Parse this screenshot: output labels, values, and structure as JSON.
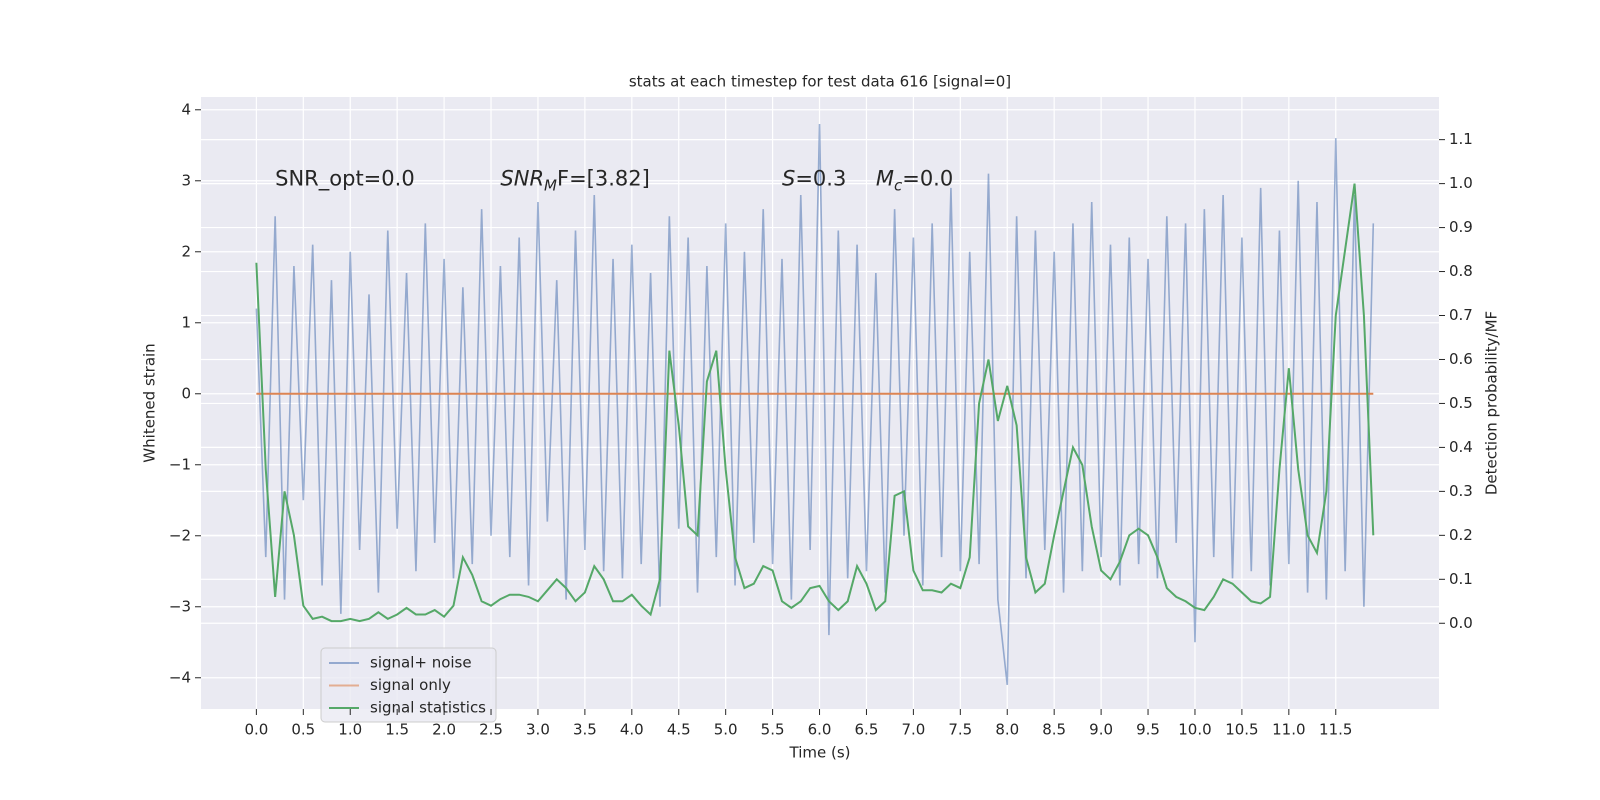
{
  "chart_data": {
    "type": "line",
    "title": "stats at each timestep for test data 616 [signal=0]",
    "xlabel": "Time (s)",
    "ylabel": "Whitened strain",
    "y2label": "Detection probability/MF",
    "annotations": [
      {
        "base": "SNR_opt=0.0"
      },
      {
        "base": "SNR",
        "sub": "M",
        "rest": "F=[3.82]"
      },
      {
        "base": "S",
        "rest": "=0.3"
      },
      {
        "base": "M",
        "sub": "c",
        "rest": "=0.0"
      }
    ],
    "x": [
      0.0,
      0.1,
      0.2,
      0.3,
      0.4,
      0.5,
      0.6,
      0.7,
      0.8,
      0.9,
      1.0,
      1.1,
      1.2,
      1.3,
      1.4,
      1.5,
      1.6,
      1.7,
      1.8,
      1.9,
      2.0,
      2.1,
      2.2,
      2.3,
      2.4,
      2.5,
      2.6,
      2.7,
      2.8,
      2.9,
      3.0,
      3.1,
      3.2,
      3.3,
      3.4,
      3.5,
      3.6,
      3.7,
      3.8,
      3.9,
      4.0,
      4.1,
      4.2,
      4.3,
      4.4,
      4.5,
      4.6,
      4.7,
      4.8,
      4.9,
      5.0,
      5.1,
      5.2,
      5.3,
      5.4,
      5.5,
      5.6,
      5.7,
      5.8,
      5.9,
      6.0,
      6.1,
      6.2,
      6.3,
      6.4,
      6.5,
      6.6,
      6.7,
      6.8,
      6.9,
      7.0,
      7.1,
      7.2,
      7.3,
      7.4,
      7.5,
      7.6,
      7.7,
      7.8,
      7.9,
      8.0,
      8.1,
      8.2,
      8.3,
      8.4,
      8.5,
      8.6,
      8.7,
      8.8,
      8.9,
      9.0,
      9.1,
      9.2,
      9.3,
      9.4,
      9.5,
      9.6,
      9.7,
      9.8,
      9.9,
      10.0,
      10.1,
      10.2,
      10.3,
      10.4,
      10.5,
      10.6,
      10.7,
      10.8,
      10.9,
      11.0,
      11.1,
      11.2,
      11.3,
      11.4,
      11.5,
      11.6,
      11.7,
      11.8,
      11.9
    ],
    "series": [
      {
        "name": "signal+ noise",
        "color": "#4c72b0",
        "values": [
          1.2,
          -2.3,
          2.5,
          -2.9,
          1.8,
          -1.5,
          2.1,
          -2.7,
          1.6,
          -3.1,
          2.0,
          -2.2,
          1.4,
          -2.8,
          2.3,
          -1.9,
          1.7,
          -2.5,
          2.4,
          -2.1,
          1.9,
          -2.6,
          1.5,
          -2.4,
          2.6,
          -2.0,
          1.8,
          -2.3,
          2.2,
          -2.7,
          2.7,
          -1.8,
          1.6,
          -2.9,
          2.3,
          -2.2,
          2.8,
          -2.5,
          1.9,
          -2.6,
          2.1,
          -2.4,
          1.7,
          -3.0,
          2.5,
          -1.9,
          2.2,
          -2.8,
          1.8,
          -2.3,
          2.4,
          -2.7,
          2.0,
          -2.1,
          2.6,
          -2.4,
          1.9,
          -2.9,
          2.8,
          -2.2,
          3.8,
          -3.4,
          2.3,
          -2.6,
          2.1,
          -2.5,
          1.7,
          -2.8,
          2.6,
          -2.0,
          2.2,
          -2.7,
          2.4,
          -2.3,
          2.9,
          -2.5,
          2.0,
          -2.4,
          3.1,
          -2.9,
          -4.1,
          2.5,
          -2.6,
          2.3,
          -2.2,
          2.0,
          -2.8,
          2.4,
          -2.5,
          2.7,
          -2.3,
          2.1,
          -2.7,
          2.2,
          -2.4,
          1.9,
          -2.6,
          2.5,
          -2.1,
          2.4,
          -3.5,
          2.6,
          -2.3,
          2.8,
          -2.6,
          2.2,
          -2.5,
          2.9,
          -2.7,
          2.3,
          -2.4,
          3.0,
          -2.8,
          2.7,
          -2.9,
          3.6,
          -2.5,
          2.8,
          -3.0,
          2.4
        ]
      },
      {
        "name": "signal only",
        "color": "#dd8452",
        "values": [
          0,
          0,
          0,
          0,
          0,
          0,
          0,
          0,
          0,
          0,
          0,
          0,
          0,
          0,
          0,
          0,
          0,
          0,
          0,
          0,
          0,
          0,
          0,
          0,
          0,
          0,
          0,
          0,
          0,
          0,
          0,
          0,
          0,
          0,
          0,
          0,
          0,
          0,
          0,
          0,
          0,
          0,
          0,
          0,
          0,
          0,
          0,
          0,
          0,
          0,
          0,
          0,
          0,
          0,
          0,
          0,
          0,
          0,
          0,
          0,
          0,
          0,
          0,
          0,
          0,
          0,
          0,
          0,
          0,
          0,
          0,
          0,
          0,
          0,
          0,
          0,
          0,
          0,
          0,
          0,
          0,
          0,
          0,
          0,
          0,
          0,
          0,
          0,
          0,
          0,
          0,
          0,
          0,
          0,
          0,
          0,
          0,
          0,
          0,
          0,
          0,
          0,
          0,
          0,
          0,
          0,
          0,
          0,
          0,
          0,
          0,
          0,
          0,
          0,
          0,
          0,
          0,
          0,
          0,
          0
        ]
      },
      {
        "name": "signal statistics",
        "color": "#55a868",
        "axis": "y2",
        "values": [
          0.82,
          0.35,
          0.06,
          0.3,
          0.2,
          0.04,
          0.01,
          0.015,
          0.005,
          0.005,
          0.01,
          0.005,
          0.01,
          0.025,
          0.01,
          0.02,
          0.035,
          0.02,
          0.02,
          0.03,
          0.015,
          0.04,
          0.15,
          0.11,
          0.05,
          0.04,
          0.055,
          0.065,
          0.065,
          0.06,
          0.05,
          0.075,
          0.1,
          0.08,
          0.05,
          0.07,
          0.13,
          0.1,
          0.05,
          0.05,
          0.065,
          0.04,
          0.02,
          0.1,
          0.62,
          0.45,
          0.22,
          0.2,
          0.55,
          0.62,
          0.35,
          0.15,
          0.08,
          0.09,
          0.13,
          0.12,
          0.05,
          0.035,
          0.05,
          0.08,
          0.085,
          0.05,
          0.03,
          0.05,
          0.13,
          0.09,
          0.03,
          0.05,
          0.29,
          0.3,
          0.12,
          0.075,
          0.075,
          0.07,
          0.09,
          0.08,
          0.15,
          0.5,
          0.6,
          0.46,
          0.54,
          0.45,
          0.15,
          0.07,
          0.09,
          0.2,
          0.3,
          0.4,
          0.36,
          0.22,
          0.12,
          0.1,
          0.14,
          0.2,
          0.215,
          0.2,
          0.15,
          0.08,
          0.06,
          0.05,
          0.035,
          0.03,
          0.06,
          0.1,
          0.09,
          0.07,
          0.05,
          0.045,
          0.06,
          0.35,
          0.58,
          0.35,
          0.2,
          0.16,
          0.3,
          0.7,
          0.85,
          1.0,
          0.7,
          0.2
        ]
      }
    ],
    "xlim": [
      -0.59,
      12.6
    ],
    "ylim": [
      -4.44,
      4.18
    ],
    "y2lim": [
      -0.195,
      1.197
    ],
    "xticks": [
      {
        "value": 0,
        "label": "0.0"
      },
      {
        "value": 0.5,
        "label": "0.5"
      },
      {
        "value": 1,
        "label": "1.0"
      },
      {
        "value": 1.5,
        "label": "1.5"
      },
      {
        "value": 2,
        "label": "2.0"
      },
      {
        "value": 2.5,
        "label": "2.5"
      },
      {
        "value": 3,
        "label": "3.0"
      },
      {
        "value": 3.5,
        "label": "3.5"
      },
      {
        "value": 4,
        "label": "4.0"
      },
      {
        "value": 4.5,
        "label": "4.5"
      },
      {
        "value": 5,
        "label": "5.0"
      },
      {
        "value": 5.5,
        "label": "5.5"
      },
      {
        "value": 6,
        "label": "6.0"
      },
      {
        "value": 6.5,
        "label": "6.5"
      },
      {
        "value": 7,
        "label": "7.0"
      },
      {
        "value": 7.5,
        "label": "7.5"
      },
      {
        "value": 8,
        "label": "8.0"
      },
      {
        "value": 8.5,
        "label": "8.5"
      },
      {
        "value": 9,
        "label": "9.0"
      },
      {
        "value": 9.5,
        "label": "9.5"
      },
      {
        "value": 10,
        "label": "10.0"
      },
      {
        "value": 10.5,
        "label": "10.5"
      },
      {
        "value": 11,
        "label": "11.0"
      },
      {
        "value": 11.5,
        "label": "11.5"
      }
    ],
    "yticks": [
      {
        "value": -4,
        "label": "−4"
      },
      {
        "value": -3,
        "label": "−3"
      },
      {
        "value": -2,
        "label": "−2"
      },
      {
        "value": -1,
        "label": "−1"
      },
      0,
      1,
      2,
      3,
      4
    ],
    "y2ticks": [
      {
        "value": 0,
        "label": "0.0"
      },
      {
        "value": 0.1,
        "label": "0.1"
      },
      {
        "value": 0.2,
        "label": "0.2"
      },
      {
        "value": 0.3,
        "label": "0.3"
      },
      {
        "value": 0.4,
        "label": "0.4"
      },
      {
        "value": 0.5,
        "label": "0.5"
      },
      {
        "value": 0.6,
        "label": "0.6"
      },
      {
        "value": 0.7,
        "label": "0.7"
      },
      {
        "value": 0.8,
        "label": "0.8"
      },
      {
        "value": 0.9,
        "label": "0.9"
      },
      {
        "value": 1,
        "label": "1.0"
      },
      {
        "value": 1.1,
        "label": "1.1"
      }
    ],
    "grid": true,
    "legend": "lower left"
  }
}
